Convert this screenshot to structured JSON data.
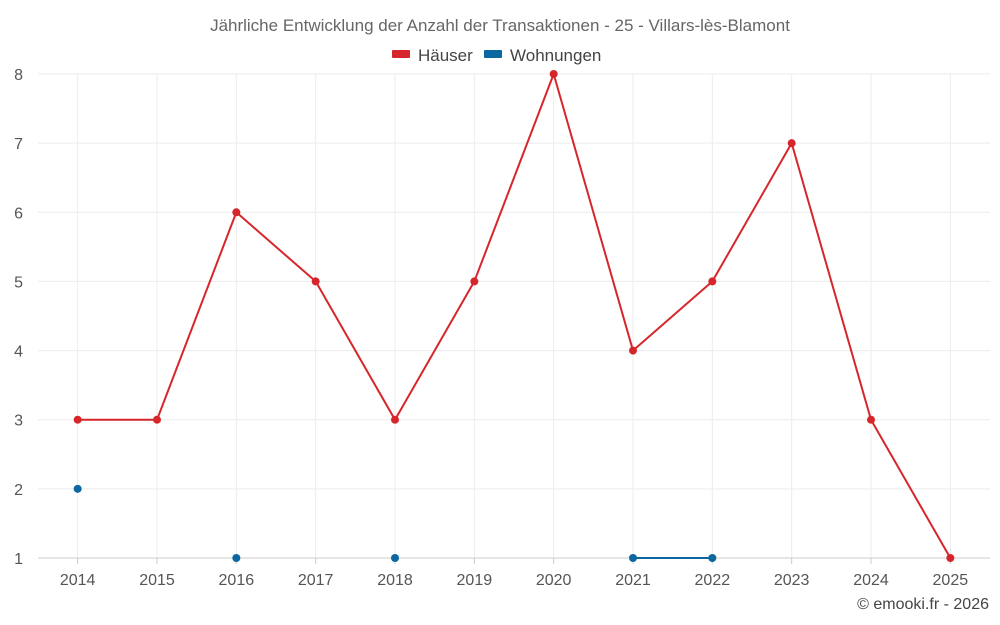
{
  "chart_data": {
    "type": "line",
    "title": "Jährliche Entwicklung der Anzahl der Transaktionen - 25 - Villars-lès-Blamont",
    "categories": [
      "2014",
      "2015",
      "2016",
      "2017",
      "2018",
      "2019",
      "2020",
      "2021",
      "2022",
      "2023",
      "2024",
      "2025"
    ],
    "series": [
      {
        "name": "Häuser",
        "color": "#d7262b",
        "values": [
          3,
          3,
          6,
          5,
          3,
          5,
          8,
          4,
          5,
          7,
          3,
          1
        ]
      },
      {
        "name": "Wohnungen",
        "color": "#0b67a0",
        "values": [
          2,
          null,
          1,
          null,
          1,
          null,
          null,
          1,
          1,
          null,
          null,
          null
        ]
      }
    ],
    "y_ticks": [
      "1",
      "2",
      "3",
      "4",
      "5",
      "6",
      "7",
      "8"
    ],
    "ylim": [
      1,
      8
    ],
    "xlabel": "",
    "ylabel": "",
    "grid": true,
    "legend_position": "top-center"
  },
  "credit": "© emooki.fr - 2026"
}
